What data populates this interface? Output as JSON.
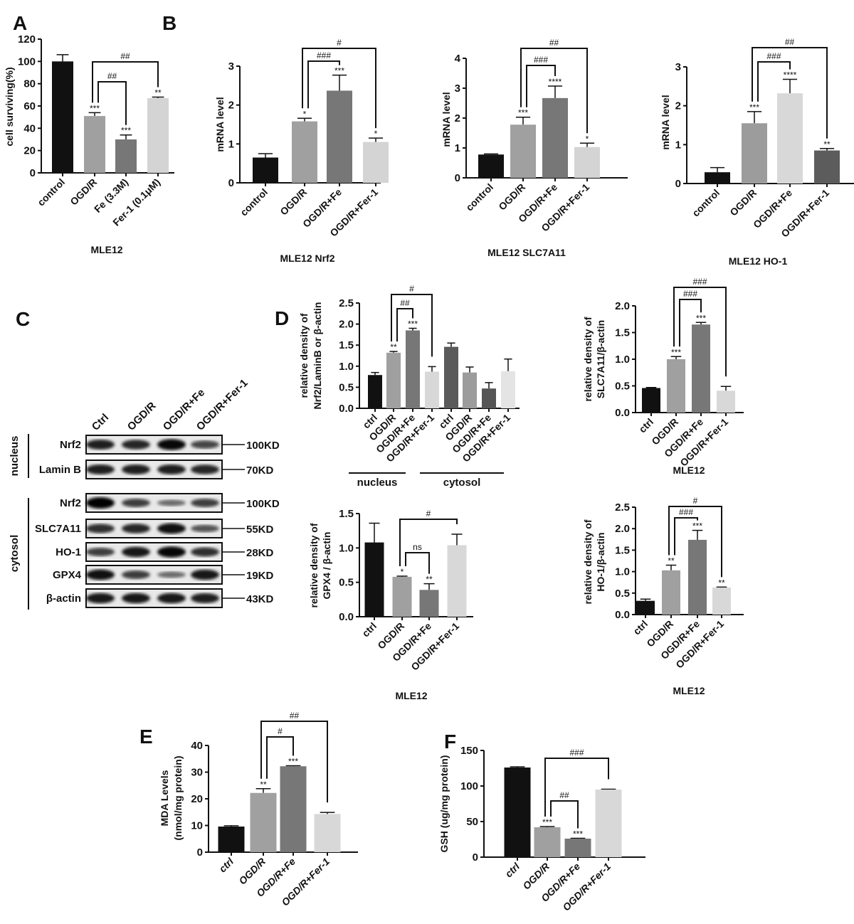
{
  "panel_letters": [
    "A",
    "B",
    "C",
    "D",
    "E",
    "F"
  ],
  "chart_data": [
    {
      "id": "A",
      "type": "bar",
      "title": "MLE12",
      "xlabel": "",
      "ylabel": [
        "cell surviving(%)"
      ],
      "categories": [
        "control",
        "OGD/R",
        "Fe (3.3M)",
        "Fer-1 (0.1μM)"
      ],
      "values": [
        100,
        51,
        30,
        67
      ],
      "errors": [
        6,
        3,
        4,
        1
      ],
      "significance": [
        "",
        "***",
        "***",
        "**"
      ],
      "ylim": [
        0,
        120
      ],
      "yticks": [
        "0",
        "20",
        "40",
        "60",
        "80",
        "100",
        "120"
      ],
      "brackets": [
        {
          "from": 1,
          "to": 3,
          "label": "##"
        },
        {
          "from": 1,
          "to": 2,
          "label": "##"
        }
      ],
      "colors": [
        "#111111",
        "#a0a0a0",
        "#777777",
        "#d4d4d4"
      ]
    },
    {
      "id": "B-Nrf2",
      "type": "bar",
      "title": "MLE12  Nrf2",
      "ylabel": [
        "mRNA level"
      ],
      "categories": [
        "control",
        "OGD/R",
        "OGD/R+Fe",
        "OGD/R+Fer-1"
      ],
      "values": [
        0.65,
        1.58,
        2.37,
        1.05
      ],
      "errors": [
        0.1,
        0.08,
        0.4,
        0.1
      ],
      "significance": [
        "",
        "*",
        "***",
        "*"
      ],
      "ylim": [
        0,
        3
      ],
      "yticks": [
        "0",
        "1",
        "2",
        "3"
      ],
      "brackets": [
        {
          "from": 1,
          "to": 3,
          "label": "#"
        },
        {
          "from": 1,
          "to": 2,
          "label": "###"
        }
      ],
      "colors": [
        "#111111",
        "#a0a0a0",
        "#777777",
        "#d4d4d4"
      ]
    },
    {
      "id": "B-SLC7A11",
      "type": "bar",
      "title": "MLE12  SLC7A11",
      "ylabel": [
        "mRNA level"
      ],
      "categories": [
        "control",
        "OGD/R",
        "OGD/R+Fe",
        "OGD/R+Fer-1"
      ],
      "values": [
        0.78,
        1.78,
        2.67,
        1.03
      ],
      "errors": [
        0.02,
        0.25,
        0.4,
        0.13
      ],
      "significance": [
        "",
        "***",
        "****",
        "*"
      ],
      "ylim": [
        0,
        4
      ],
      "yticks": [
        "0",
        "1",
        "2",
        "3",
        "4"
      ],
      "brackets": [
        {
          "from": 1,
          "to": 3,
          "label": "##"
        },
        {
          "from": 1,
          "to": 2,
          "label": "###"
        }
      ],
      "colors": [
        "#111111",
        "#a0a0a0",
        "#777777",
        "#d4d4d4"
      ]
    },
    {
      "id": "B-HO-1",
      "type": "bar",
      "title": "MLE12     HO-1",
      "ylabel": [
        "mRNA level"
      ],
      "categories": [
        "control",
        "OGD/R",
        "OGD/R+Fe",
        "OGD/R+Fer-1"
      ],
      "values": [
        0.29,
        1.55,
        2.32,
        0.85
      ],
      "errors": [
        0.12,
        0.3,
        0.36,
        0.05
      ],
      "significance": [
        "",
        "***",
        "****",
        "**"
      ],
      "ylim": [
        0,
        3
      ],
      "yticks": [
        "0",
        "1",
        "2",
        "3"
      ],
      "brackets": [
        {
          "from": 1,
          "to": 3,
          "label": "##"
        },
        {
          "from": 1,
          "to": 2,
          "label": "###"
        }
      ],
      "colors": [
        "#111111",
        "#9c9c9c",
        "#d8d8d8",
        "#5c5c5c"
      ]
    },
    {
      "id": "D-Nrf2",
      "type": "bar",
      "title": "",
      "ylabel": [
        "relative density of",
        "Nrf2/LaminB or β-actin"
      ],
      "categories": [
        "ctrl",
        "OGD/R",
        "OGD/R+Fe",
        "OGD/R+Fer-1",
        "ctrl",
        "OGD/R",
        "OGD/R+Fe",
        "OGD/R+Fer-1"
      ],
      "groups": [
        "nucleus",
        "cytosol"
      ],
      "values": [
        0.79,
        1.32,
        1.85,
        0.87,
        1.46,
        0.85,
        0.47,
        0.88
      ],
      "errors": [
        0.06,
        0.03,
        0.05,
        0.12,
        0.09,
        0.13,
        0.14,
        0.29
      ],
      "significance": [
        "",
        "**",
        "***",
        "",
        "",
        "",
        "",
        ""
      ],
      "ylim": [
        0,
        2.5
      ],
      "yticks": [
        "0.0",
        "0.5",
        "1.0",
        "1.5",
        "2.0",
        "2.5"
      ],
      "brackets": [
        {
          "from": 1,
          "to": 3,
          "label": "#"
        },
        {
          "from": 1,
          "to": 2,
          "label": "##"
        }
      ],
      "colors": [
        "#111111",
        "#a0a0a0",
        "#777777",
        "#d8d8d8",
        "#5a5a5a",
        "#9c9c9c",
        "#555555",
        "#e4e4e4"
      ]
    },
    {
      "id": "D-SLC7A11",
      "type": "bar",
      "title": "MLE12",
      "ylabel": [
        "relative density of",
        "SLC7A11/β-actin"
      ],
      "categories": [
        "ctrl",
        "OGD/R",
        "OGD/R+Fe",
        "OGD/R+Fer-1"
      ],
      "values": [
        0.46,
        1.0,
        1.65,
        0.41
      ],
      "errors": [
        0.01,
        0.05,
        0.04,
        0.08
      ],
      "significance": [
        "",
        "***",
        "***",
        ""
      ],
      "ylim": [
        0,
        2.0
      ],
      "yticks": [
        "0.0",
        "0.5",
        "1.0",
        "1.5",
        "2.0"
      ],
      "brackets": [
        {
          "from": 1,
          "to": 3,
          "label": "###"
        },
        {
          "from": 1,
          "to": 2,
          "label": "###"
        }
      ],
      "colors": [
        "#111111",
        "#a0a0a0",
        "#777777",
        "#d8d8d8"
      ]
    },
    {
      "id": "D-GPX4",
      "type": "bar",
      "title": "MLE12",
      "ylabel": [
        "relative density of",
        "GPX4 / β-actin"
      ],
      "categories": [
        "ctrl",
        "OGD/R",
        "OGD/R+Fe",
        "OGD/R+Fer-1"
      ],
      "values": [
        1.08,
        0.58,
        0.39,
        1.04
      ],
      "errors": [
        0.28,
        0.01,
        0.09,
        0.16
      ],
      "significance": [
        "",
        "*",
        "**",
        ""
      ],
      "ylim": [
        0,
        1.5
      ],
      "yticks": [
        "0.0",
        "0.5",
        "1.0",
        "1.5"
      ],
      "brackets": [
        {
          "from": 1,
          "to": 3,
          "label": "#"
        },
        {
          "from": 1,
          "to": 2,
          "label": "ns"
        }
      ],
      "colors": [
        "#111111",
        "#a0a0a0",
        "#777777",
        "#d8d8d8"
      ]
    },
    {
      "id": "D-HO-1",
      "type": "bar",
      "title": "MLE12",
      "ylabel": [
        "relative density of",
        "HO-1/β-actin"
      ],
      "categories": [
        "ctrl",
        "OGD/R",
        "OGD/R+Fe",
        "OGD/R+Fer-1"
      ],
      "values": [
        0.32,
        1.03,
        1.74,
        0.63
      ],
      "errors": [
        0.04,
        0.12,
        0.22,
        0.01
      ],
      "significance": [
        "",
        "**",
        "***",
        "**"
      ],
      "ylim": [
        0,
        2.5
      ],
      "yticks": [
        "0.0",
        "0.5",
        "1.0",
        "1.5",
        "2.0",
        "2.5"
      ],
      "brackets": [
        {
          "from": 1,
          "to": 3,
          "label": "#"
        },
        {
          "from": 1,
          "to": 2,
          "label": "###"
        }
      ],
      "colors": [
        "#111111",
        "#a0a0a0",
        "#777777",
        "#d8d8d8"
      ]
    },
    {
      "id": "E",
      "type": "bar",
      "title": "",
      "ylabel": [
        "MDA Levels",
        "(nmol/mg protein)"
      ],
      "categories": [
        "ctrl",
        "OGD/R",
        "OGD/R+Fe",
        "OGD/R+Fer-1"
      ],
      "values": [
        9.6,
        22.2,
        32.2,
        14.3
      ],
      "errors": [
        0.3,
        1.6,
        0.2,
        0.6
      ],
      "significance": [
        "",
        "**",
        "***",
        ""
      ],
      "ylim": [
        0,
        40
      ],
      "yticks": [
        "0",
        "10",
        "20",
        "30",
        "40"
      ],
      "brackets": [
        {
          "from": 1,
          "to": 3,
          "label": "##"
        },
        {
          "from": 1,
          "to": 2,
          "label": "#"
        }
      ],
      "colors": [
        "#111111",
        "#a0a0a0",
        "#777777",
        "#d8d8d8"
      ]
    },
    {
      "id": "F",
      "type": "bar",
      "title": "",
      "ylabel": [
        "GSH (ug/mg protein)"
      ],
      "categories": [
        "ctrl",
        "OGD/R",
        "OGD/R+Fe",
        "OGD/R+Fer-1"
      ],
      "values": [
        126,
        42,
        26,
        95
      ],
      "errors": [
        1,
        1,
        0.5,
        0.5
      ],
      "significance": [
        "",
        "***",
        "***",
        ""
      ],
      "ylim": [
        0,
        150
      ],
      "yticks": [
        "0",
        "50",
        "100",
        "150"
      ],
      "brackets": [
        {
          "from": 1,
          "to": 3,
          "label": "###"
        },
        {
          "from": 1,
          "to": 2,
          "label": "##"
        }
      ],
      "colors": [
        "#111111",
        "#a0a0a0",
        "#777777",
        "#d8d8d8"
      ]
    }
  ],
  "blot": {
    "lanes": [
      "Ctrl",
      "OGD/R",
      "OGD/R+Fe",
      "OGD/R+Fer-1"
    ],
    "groups": [
      {
        "label": "nucleus"
      },
      {
        "label": "cytosol"
      }
    ],
    "rows": [
      {
        "protein": "Nrf2",
        "mw": "100KD",
        "group": 0,
        "intensity": [
          0.8,
          0.75,
          0.95,
          0.55
        ]
      },
      {
        "protein": "Lamin B",
        "mw": "70KD",
        "group": 0,
        "intensity": [
          0.8,
          0.8,
          0.8,
          0.75
        ]
      },
      {
        "protein": "Nrf2",
        "mw": "100KD",
        "group": 1,
        "intensity": [
          1.0,
          0.6,
          0.3,
          0.6
        ]
      },
      {
        "protein": "SLC7A11",
        "mw": "55KD",
        "group": 1,
        "intensity": [
          0.7,
          0.75,
          0.9,
          0.45
        ]
      },
      {
        "protein": "HO-1",
        "mw": "28KD",
        "group": 1,
        "intensity": [
          0.6,
          0.85,
          0.95,
          0.7
        ]
      },
      {
        "protein": "GPX4",
        "mw": "19KD",
        "group": 1,
        "intensity": [
          0.9,
          0.6,
          0.3,
          0.85
        ]
      },
      {
        "protein": "β-actin",
        "mw": "43KD",
        "group": 1,
        "intensity": [
          0.85,
          0.85,
          0.85,
          0.8
        ]
      }
    ]
  }
}
